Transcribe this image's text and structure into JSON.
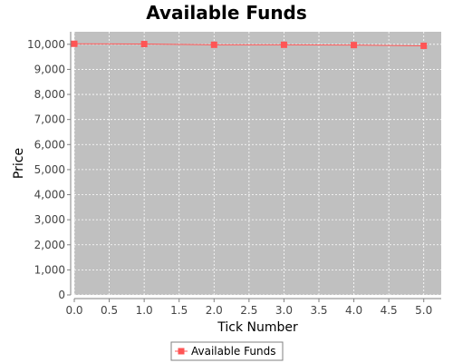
{
  "chart_data": {
    "type": "line",
    "title": "Available Funds",
    "xlabel": "Tick Number",
    "ylabel": "Price",
    "x": [
      0,
      1,
      2,
      3,
      4,
      5
    ],
    "series": [
      {
        "name": "Available Funds",
        "values": [
          10020,
          10010,
          9980,
          9980,
          9970,
          9940
        ]
      }
    ],
    "xlim": [
      0,
      5.25
    ],
    "ylim": [
      0,
      10500
    ],
    "x_ticks": [
      0,
      0.5,
      1,
      1.5,
      2,
      2.5,
      3,
      3.5,
      4,
      4.5,
      5
    ],
    "x_tick_labels": [
      "0.0",
      "0.5",
      "1.0",
      "1.5",
      "2.0",
      "2.5",
      "3.0",
      "3.5",
      "4.0",
      "4.5",
      "5.0"
    ],
    "y_ticks": [
      0,
      1000,
      2000,
      3000,
      4000,
      5000,
      6000,
      7000,
      8000,
      9000,
      10000
    ],
    "y_tick_labels": [
      "0",
      "1,000",
      "2,000",
      "3,000",
      "4,000",
      "5,000",
      "6,000",
      "7,000",
      "8,000",
      "9,000",
      "10,000"
    ],
    "grid": true,
    "legend_position": "bottom",
    "colors": {
      "series": "#ff5555",
      "plot_background": "#c0c0c0",
      "grid": "#ffffff",
      "axis": "#808080"
    }
  }
}
